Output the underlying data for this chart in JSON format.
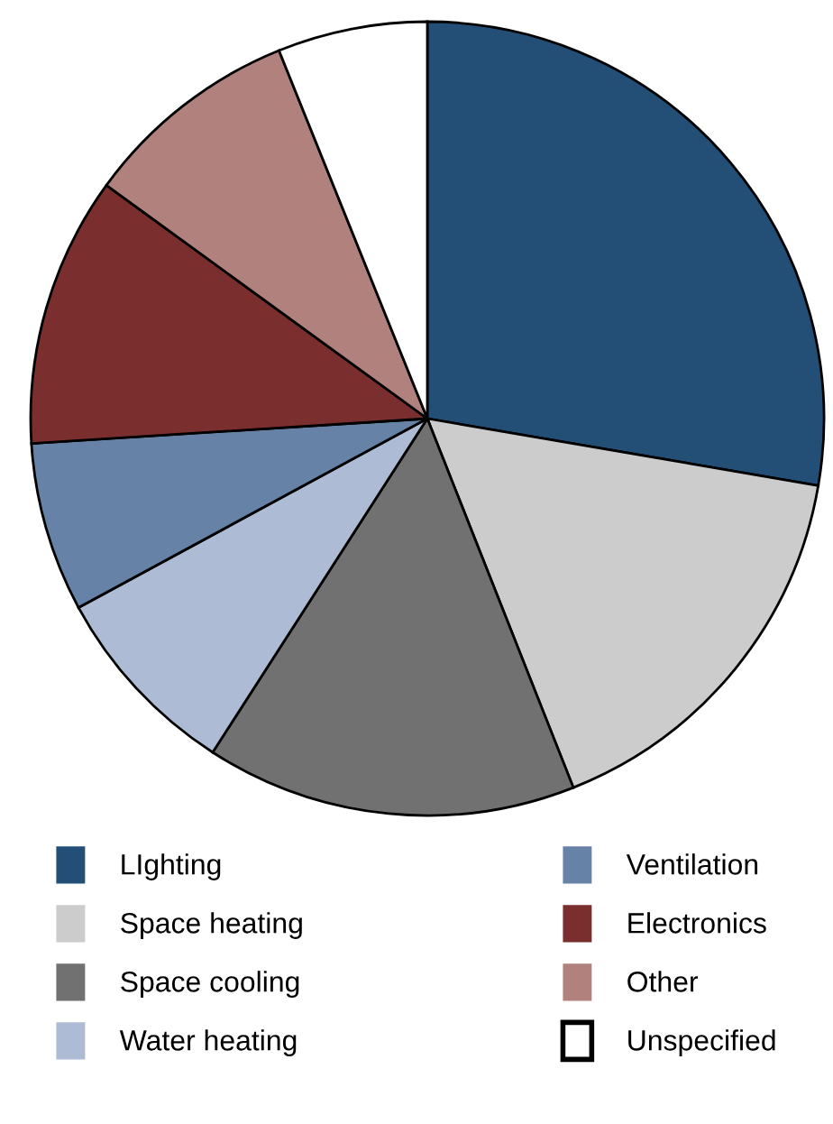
{
  "chart_data": {
    "type": "pie",
    "categories": [
      "LIghting",
      "Space heating",
      "Space cooling",
      "Water heating",
      "Ventilation",
      "Electronics",
      "Other",
      "Unspecified"
    ],
    "values": [
      27.7,
      16.3,
      15.1,
      8.0,
      6.9,
      11.0,
      8.9,
      6.1
    ],
    "colors": [
      "#234f77",
      "#cccccc",
      "#717171",
      "#adbcd4",
      "#6682a7",
      "#7a2e2e",
      "#b0817d",
      "#ffffff"
    ],
    "legend": "bottom"
  }
}
